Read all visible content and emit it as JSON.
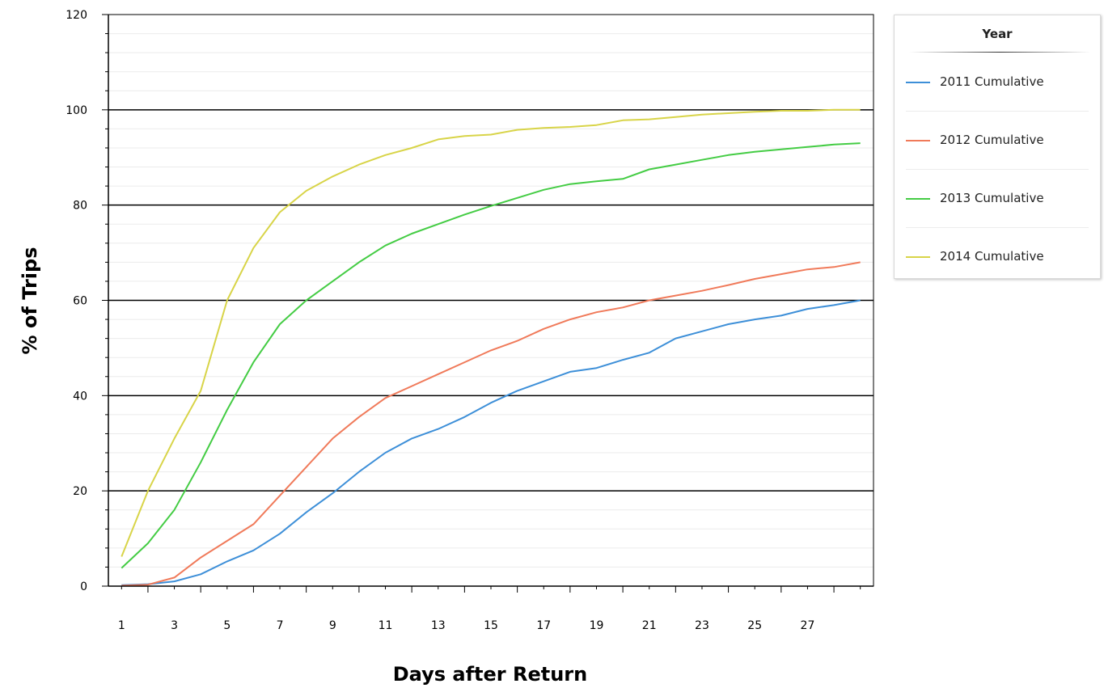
{
  "chart_data": {
    "type": "line",
    "title": "",
    "xlabel": "Days after Return",
    "ylabel": "% of Trips",
    "xlim": [
      0.5,
      29.5
    ],
    "ylim": [
      0,
      120
    ],
    "x_tick_labels": [
      "1",
      "3",
      "5",
      "7",
      "9",
      "11",
      "13",
      "15",
      "17",
      "19",
      "21",
      "23",
      "25",
      "27"
    ],
    "y_tick_labels": [
      "0",
      "20",
      "40",
      "60",
      "80",
      "100",
      "120"
    ],
    "grid": true,
    "legend": {
      "title": "Year",
      "placement": "top-right-outside"
    },
    "x": [
      1,
      2,
      3,
      4,
      5,
      6,
      7,
      8,
      9,
      10,
      11,
      12,
      13,
      14,
      15,
      16,
      17,
      18,
      19,
      20,
      21,
      22,
      23,
      24,
      25,
      26,
      27,
      28,
      29
    ],
    "series": [
      {
        "name": "2011 Cumulative",
        "color": "#3d8fd8",
        "values": [
          0.2,
          0.4,
          1,
          2.5,
          5.2,
          7.5,
          11,
          15.5,
          19.5,
          24,
          28,
          31,
          33,
          35.5,
          38.5,
          41,
          43,
          45,
          45.8,
          47.5,
          49,
          52,
          53.5,
          55,
          56,
          56.8,
          58.2,
          59,
          60
        ]
      },
      {
        "name": "2012 Cumulative",
        "color": "#f07a5a",
        "values": [
          0.1,
          0.3,
          1.8,
          6,
          9.5,
          13,
          19,
          25,
          31,
          35.5,
          39.5,
          42,
          44.5,
          47,
          49.5,
          51.5,
          54,
          56,
          57.5,
          58.5,
          60,
          61,
          62,
          63.2,
          64.5,
          65.5,
          66.5,
          67,
          68
        ]
      },
      {
        "name": "2013 Cumulative",
        "color": "#44cc44",
        "values": [
          3.8,
          9,
          16,
          26,
          37,
          47,
          55,
          60,
          64,
          68,
          71.5,
          74,
          76,
          78,
          79.8,
          81.5,
          83.2,
          84.4,
          85,
          85.5,
          87.5,
          88.5,
          89.5,
          90.5,
          91.2,
          91.7,
          92.2,
          92.7,
          93
        ]
      },
      {
        "name": "2014 Cumulative",
        "color": "#d8d448",
        "values": [
          6.2,
          20,
          31,
          41,
          60,
          71,
          78.5,
          83,
          86,
          88.5,
          90.5,
          92,
          93.8,
          94.5,
          94.8,
          95.8,
          96.2,
          96.4,
          96.8,
          97.8,
          98,
          98.5,
          99,
          99.3,
          99.6,
          99.8,
          99.8,
          100,
          100
        ]
      }
    ]
  }
}
